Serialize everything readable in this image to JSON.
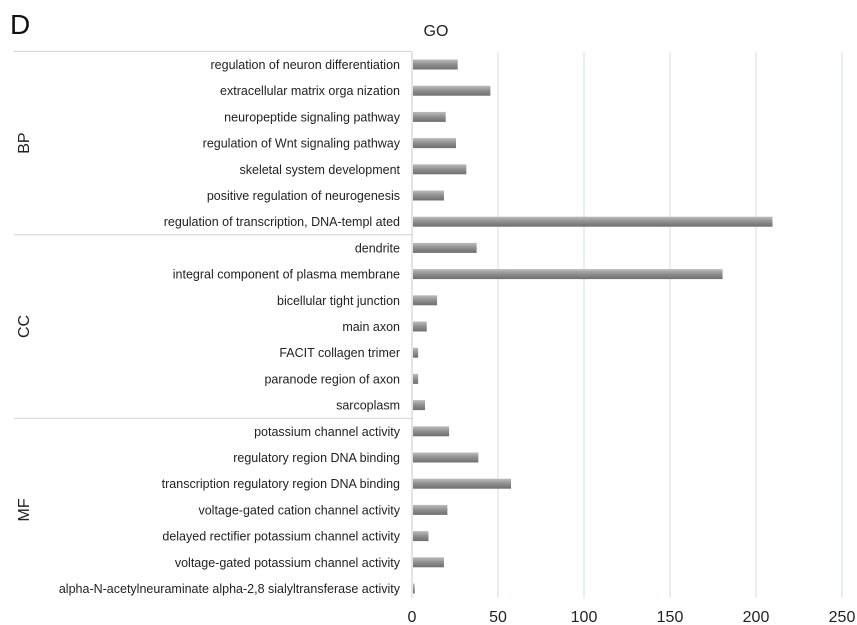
{
  "panel_label": "D",
  "chart_data": {
    "type": "bar",
    "orientation": "horizontal",
    "title": "GO",
    "xlabel": "",
    "ylabel": "",
    "xlim": [
      0,
      250
    ],
    "xticks": [
      0,
      50,
      100,
      150,
      200,
      250
    ],
    "grid": true,
    "legend": "none",
    "bar_color": "#8e8e8e",
    "groups": [
      {
        "name": "BP",
        "categories": [
          "regulation of neuron differentiation",
          "extracellular matrix orga nization",
          "neuropeptide signaling pathway",
          "regulation of Wnt signaling pathway",
          "skeletal system development",
          "positive regulation of neurogenesis",
          "regulation of transcription, DNA-templ ated"
        ],
        "values": [
          26,
          45,
          19,
          25,
          31,
          18,
          209
        ]
      },
      {
        "name": "CC",
        "categories": [
          "dendrite",
          "integral component of plasma membrane",
          "bicellular tight junction",
          "main axon",
          "FACIT collagen trimer",
          "paranode region of axon",
          "sarcoplasm"
        ],
        "values": [
          37,
          180,
          14,
          8,
          3,
          3,
          7
        ]
      },
      {
        "name": "MF",
        "categories": [
          "potassium channel activity",
          "regulatory region DNA binding",
          "transcription regulatory region DNA binding",
          "voltage-gated cation channel activity",
          "delayed rectifier potassium channel activity",
          "voltage-gated potassium channel activity",
          "alpha-N-acetylneuraminate alpha-2,8 sialyltransferase activity"
        ],
        "values": [
          21,
          38,
          57,
          20,
          9,
          18,
          1
        ]
      }
    ]
  }
}
